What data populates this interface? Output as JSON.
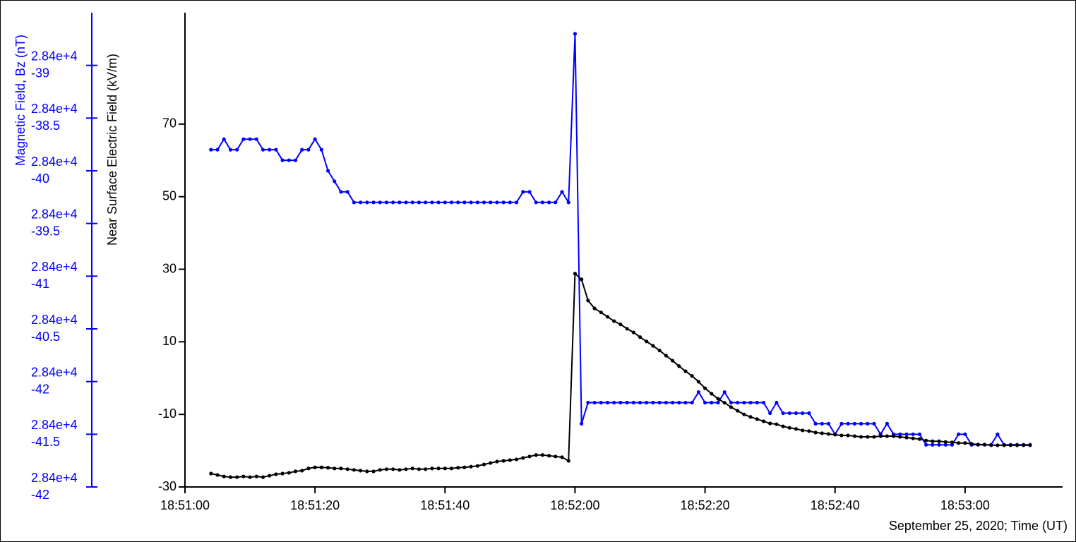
{
  "chart_data": {
    "type": "line",
    "xlabel": "September 25, 2020; Time (UT)",
    "ylabel": "Near Surface Electric Field (kV/m)",
    "y2label": "Magnetic Field, Bz (nT)",
    "xlim": [
      67860,
      67995
    ],
    "xticks": [
      {
        "value": 67860,
        "label": "18:51:00"
      },
      {
        "value": 67880,
        "label": "18:51:20"
      },
      {
        "value": 67900,
        "label": "18:51:40"
      },
      {
        "value": 67920,
        "label": "18:52:00"
      },
      {
        "value": 67940,
        "label": "18:52:20"
      },
      {
        "value": 67960,
        "label": "18:52:40"
      },
      {
        "value": 67980,
        "label": "18:53:00"
      }
    ],
    "ylim": [
      -30,
      100.7
    ],
    "yticks": [
      -30,
      -10,
      10,
      30,
      50,
      70
    ],
    "y2lim": [
      28357,
      28361.5
    ],
    "y2ticks": [
      {
        "value": 28361,
        "label": [
          "2.84e+4",
          "-39"
        ]
      },
      {
        "value": 28360.5,
        "label": [
          "2.84e+4",
          "-38.5"
        ]
      },
      {
        "value": 28360,
        "label": [
          "2.84e+4",
          "-40"
        ]
      },
      {
        "value": 28359.5,
        "label": [
          "2.84e+4",
          "-39.5"
        ]
      },
      {
        "value": 28359,
        "label": [
          "2.84e+4",
          "-41"
        ]
      },
      {
        "value": 28358.5,
        "label": [
          "2.84e+4",
          "-40.5"
        ]
      },
      {
        "value": 28358,
        "label": [
          "2.84e+4",
          "-42"
        ]
      },
      {
        "value": 28357.5,
        "label": [
          "2.84e+4",
          "-41.5"
        ]
      },
      {
        "value": 28357,
        "label": [
          "2.84e+4",
          "-42"
        ]
      }
    ],
    "x": [
      67864,
      67865,
      67866,
      67867,
      67868,
      67869,
      67870,
      67871,
      67872,
      67873,
      67874,
      67875,
      67876,
      67877,
      67878,
      67879,
      67880,
      67881,
      67882,
      67883,
      67884,
      67885,
      67886,
      67887,
      67888,
      67889,
      67890,
      67891,
      67892,
      67893,
      67894,
      67895,
      67896,
      67897,
      67898,
      67899,
      67900,
      67901,
      67902,
      67903,
      67904,
      67905,
      67906,
      67907,
      67908,
      67909,
      67910,
      67911,
      67912,
      67913,
      67914,
      67915,
      67916,
      67917,
      67918,
      67919,
      67920,
      67921,
      67922,
      67923,
      67924,
      67925,
      67926,
      67927,
      67928,
      67929,
      67930,
      67931,
      67932,
      67933,
      67934,
      67935,
      67936,
      67937,
      67938,
      67939,
      67940,
      67941,
      67942,
      67943,
      67944,
      67945,
      67946,
      67947,
      67948,
      67949,
      67950,
      67951,
      67952,
      67953,
      67954,
      67955,
      67956,
      67957,
      67958,
      67959,
      67960,
      67961,
      67962,
      67963,
      67964,
      67965,
      67966,
      67967,
      67968,
      67969,
      67970,
      67971,
      67972,
      67973,
      67974,
      67975,
      67976,
      67977,
      67978,
      67979,
      67980,
      67981,
      67982,
      67983,
      67984,
      67985,
      67986,
      67987,
      67988,
      67989,
      67990
    ],
    "series": [
      {
        "color": "#0000ff",
        "axis": "y2",
        "values": [
          28360.2,
          28360.2,
          28360.3,
          28360.2,
          28360.2,
          28360.3,
          28360.3,
          28360.3,
          28360.2,
          28360.2,
          28360.2,
          28360.1,
          28360.1,
          28360.1,
          28360.2,
          28360.2,
          28360.3,
          28360.2,
          28360.0,
          28359.9,
          28359.8,
          28359.8,
          28359.7,
          28359.7,
          28359.7,
          28359.7,
          28359.7,
          28359.7,
          28359.7,
          28359.7,
          28359.7,
          28359.7,
          28359.7,
          28359.7,
          28359.7,
          28359.7,
          28359.7,
          28359.7,
          28359.7,
          28359.7,
          28359.7,
          28359.7,
          28359.7,
          28359.7,
          28359.7,
          28359.7,
          28359.7,
          28359.7,
          28359.8,
          28359.8,
          28359.7,
          28359.7,
          28359.7,
          28359.7,
          28359.8,
          28359.7,
          28361.3,
          28357.6,
          28357.8,
          28357.8,
          28357.8,
          28357.8,
          28357.8,
          28357.8,
          28357.8,
          28357.8,
          28357.8,
          28357.8,
          28357.8,
          28357.8,
          28357.8,
          28357.8,
          28357.8,
          28357.8,
          28357.8,
          28357.9,
          28357.8,
          28357.8,
          28357.8,
          28357.9,
          28357.8,
          28357.8,
          28357.8,
          28357.8,
          28357.8,
          28357.8,
          28357.7,
          28357.8,
          28357.7,
          28357.7,
          28357.7,
          28357.7,
          28357.7,
          28357.6,
          28357.6,
          28357.6,
          28357.5,
          28357.6,
          28357.6,
          28357.6,
          28357.6,
          28357.6,
          28357.6,
          28357.5,
          28357.6,
          28357.5,
          28357.5,
          28357.5,
          28357.5,
          28357.5,
          28357.4,
          28357.4,
          28357.4,
          28357.4,
          28357.4,
          28357.5,
          28357.5,
          28357.4,
          28357.4,
          28357.4,
          28357.4,
          28357.5,
          28357.4,
          28357.4,
          28357.4,
          28357.4,
          28357.4
        ]
      },
      {
        "color": "#000000",
        "values": [
          -26.3,
          -26.7,
          -27.1,
          -27.3,
          -27.3,
          -27.1,
          -27.3,
          -27.1,
          -27.3,
          -26.9,
          -26.5,
          -26.3,
          -26.1,
          -25.7,
          -25.5,
          -24.9,
          -24.6,
          -24.6,
          -24.7,
          -24.9,
          -24.9,
          -25.1,
          -25.3,
          -25.5,
          -25.7,
          -25.7,
          -25.3,
          -25.1,
          -25.1,
          -25.3,
          -25.1,
          -24.9,
          -25.1,
          -25.1,
          -24.9,
          -24.9,
          -24.9,
          -24.9,
          -24.7,
          -24.6,
          -24.4,
          -24.2,
          -23.8,
          -23.4,
          -23.0,
          -22.8,
          -22.6,
          -22.4,
          -22.0,
          -21.6,
          -21.2,
          -21.2,
          -21.4,
          -21.6,
          -21.8,
          -22.8,
          28.8,
          27.2,
          21.4,
          19.2,
          18.1,
          16.9,
          15.7,
          14.8,
          13.6,
          12.6,
          11.3,
          10.1,
          8.9,
          7.6,
          6.2,
          4.8,
          3.3,
          1.9,
          0.6,
          -1.0,
          -2.8,
          -4.3,
          -5.7,
          -6.8,
          -8.0,
          -9.0,
          -10.0,
          -10.7,
          -11.3,
          -11.9,
          -12.5,
          -12.7,
          -13.3,
          -13.7,
          -14.0,
          -14.4,
          -14.6,
          -15.0,
          -15.2,
          -15.4,
          -15.6,
          -15.8,
          -15.8,
          -16.0,
          -16.2,
          -16.2,
          -16.2,
          -16.0,
          -16.0,
          -16.0,
          -16.2,
          -16.4,
          -16.6,
          -16.8,
          -17.2,
          -17.4,
          -17.4,
          -17.6,
          -17.7,
          -17.9,
          -17.9,
          -18.1,
          -18.3,
          -18.3,
          -18.5,
          -18.5,
          -18.5,
          -18.5,
          -18.5,
          -18.5,
          -18.5
        ]
      }
    ]
  }
}
